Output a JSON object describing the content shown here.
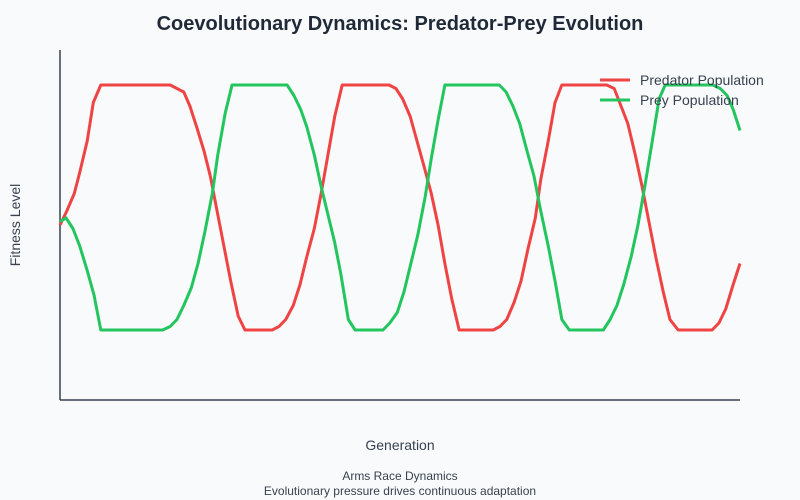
{
  "chart_data": {
    "type": "line",
    "title": "Coevolutionary Dynamics: Predator-Prey Evolution",
    "xlabel": "Generation",
    "ylabel": "Fitness Level",
    "xlim": [
      0,
      100
    ],
    "ylim": [
      0,
      1
    ],
    "grid": false,
    "legend_position": "top-right",
    "series": [
      {
        "name": "Predator Population",
        "color": "#ef4444",
        "x": [
          0,
          1.0,
          2.1,
          2.9,
          4.0,
          4.9,
          6.0,
          16.2,
          17.2,
          18.2,
          19.1,
          20.1,
          21.2,
          22.1,
          23.1,
          24.1,
          25.1,
          26.2,
          27.2,
          31.2,
          32.2,
          33.2,
          34.3,
          35.3,
          36.3,
          37.4,
          38.4,
          39.4,
          40.4,
          41.5,
          48.4,
          49.4,
          50.4,
          51.5,
          52.5,
          53.5,
          54.6,
          55.6,
          56.6,
          57.6,
          58.7,
          63.7,
          64.7,
          65.7,
          66.8,
          67.8,
          68.8,
          69.9,
          70.7,
          71.8,
          72.8,
          73.8,
          80.4,
          81.5,
          82.5,
          83.5,
          84.6,
          85.6,
          86.6,
          87.6,
          88.7,
          89.7,
          90.9,
          95.9,
          96.9,
          97.9,
          99.0,
          100
        ],
        "y": [
          0.5,
          0.54,
          0.59,
          0.65,
          0.74,
          0.85,
          0.9,
          0.9,
          0.89,
          0.88,
          0.84,
          0.78,
          0.71,
          0.64,
          0.54,
          0.44,
          0.34,
          0.24,
          0.2,
          0.2,
          0.21,
          0.23,
          0.27,
          0.33,
          0.41,
          0.49,
          0.59,
          0.7,
          0.81,
          0.9,
          0.9,
          0.89,
          0.86,
          0.81,
          0.74,
          0.67,
          0.59,
          0.5,
          0.39,
          0.29,
          0.2,
          0.2,
          0.21,
          0.23,
          0.28,
          0.34,
          0.43,
          0.52,
          0.63,
          0.74,
          0.85,
          0.9,
          0.9,
          0.89,
          0.84,
          0.79,
          0.7,
          0.61,
          0.51,
          0.41,
          0.31,
          0.23,
          0.2,
          0.2,
          0.22,
          0.26,
          0.33,
          0.39
        ]
      },
      {
        "name": "Prey Population",
        "color": "#22c55e",
        "x": [
          0,
          0.9,
          1.9,
          2.9,
          4.0,
          5.0,
          6.0,
          15.1,
          16.2,
          17.2,
          18.2,
          19.3,
          20.3,
          21.3,
          22.4,
          23.2,
          24.3,
          25.3,
          33.4,
          34.4,
          35.4,
          36.3,
          37.4,
          38.4,
          39.4,
          40.4,
          41.3,
          42.4,
          43.4,
          47.5,
          48.5,
          49.6,
          50.6,
          51.6,
          52.6,
          53.7,
          54.6,
          55.6,
          56.6,
          64.6,
          65.6,
          66.6,
          67.6,
          68.7,
          69.7,
          70.7,
          71.8,
          72.8,
          73.8,
          74.9,
          79.9,
          80.9,
          81.9,
          82.9,
          84.0,
          85.0,
          86.0,
          87.1,
          88.1,
          89.0,
          96.0,
          97.1,
          98.1,
          99.0,
          100
        ],
        "y": [
          0.51,
          0.52,
          0.49,
          0.44,
          0.37,
          0.3,
          0.2,
          0.2,
          0.21,
          0.23,
          0.27,
          0.32,
          0.39,
          0.48,
          0.59,
          0.7,
          0.82,
          0.9,
          0.9,
          0.87,
          0.83,
          0.78,
          0.7,
          0.61,
          0.53,
          0.45,
          0.36,
          0.23,
          0.2,
          0.2,
          0.22,
          0.25,
          0.31,
          0.39,
          0.47,
          0.58,
          0.69,
          0.8,
          0.9,
          0.9,
          0.88,
          0.84,
          0.79,
          0.71,
          0.64,
          0.54,
          0.44,
          0.34,
          0.23,
          0.2,
          0.2,
          0.23,
          0.27,
          0.33,
          0.41,
          0.5,
          0.61,
          0.74,
          0.86,
          0.9,
          0.9,
          0.89,
          0.87,
          0.83,
          0.77
        ]
      }
    ],
    "annotations": [
      "Arms Race Dynamics",
      "Evolutionary pressure drives continuous adaptation"
    ]
  }
}
